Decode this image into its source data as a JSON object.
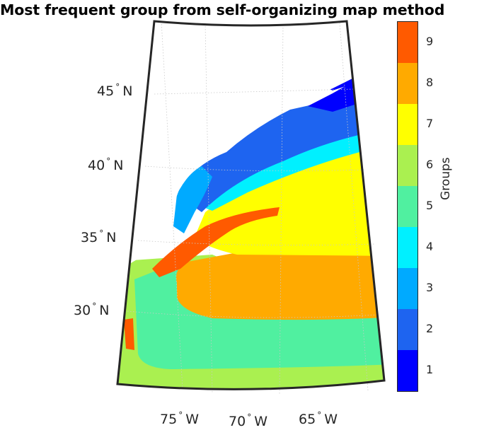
{
  "title": "Most frequent group from self-organizing map method",
  "lat_labels": [
    "45",
    "40",
    "35",
    "30"
  ],
  "lat_suffix": "N",
  "lon_labels": [
    "75",
    "70",
    "65"
  ],
  "lon_suffix": "W",
  "colorbar": {
    "label": "Groups",
    "ticks": [
      "1",
      "2",
      "3",
      "4",
      "5",
      "6",
      "7",
      "8",
      "9"
    ],
    "colors": [
      "#0000ff",
      "#1e64f0",
      "#00aaff",
      "#00f0ff",
      "#50f0a0",
      "#aaf050",
      "#ffff00",
      "#ffaa00",
      "#ff5a00"
    ]
  },
  "land_color": "#ffffff",
  "frame_color": "#262626"
}
